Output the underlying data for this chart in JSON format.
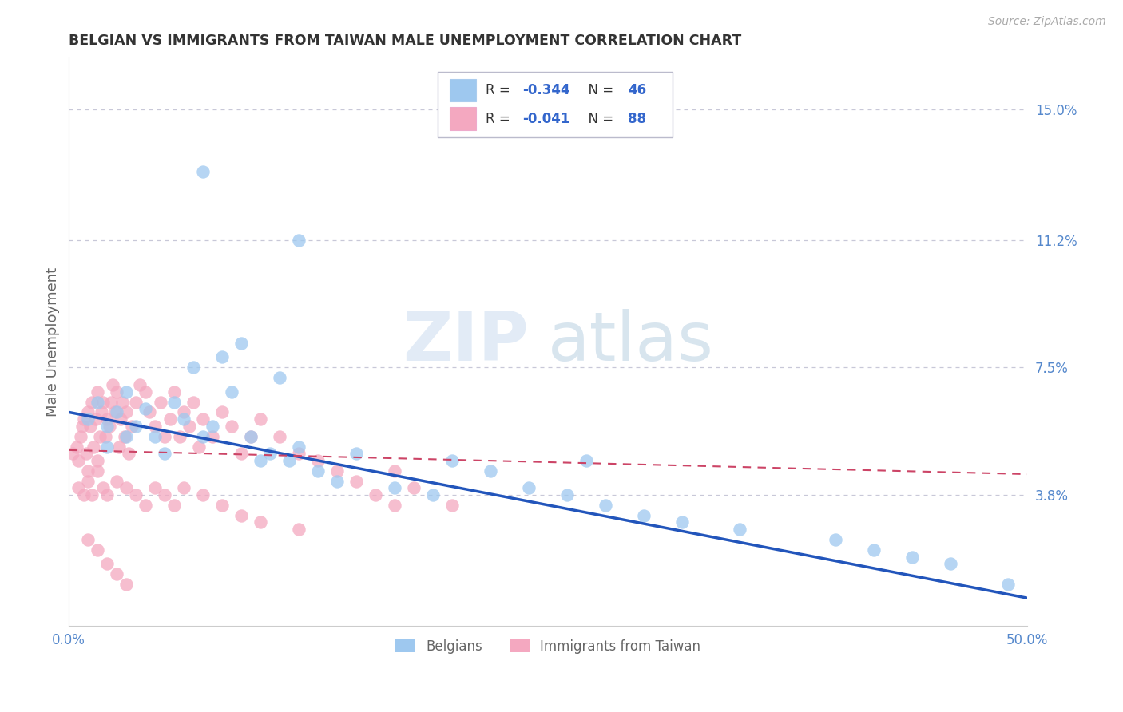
{
  "title": "BELGIAN VS IMMIGRANTS FROM TAIWAN MALE UNEMPLOYMENT CORRELATION CHART",
  "source": "Source: ZipAtlas.com",
  "ylabel": "Male Unemployment",
  "xlim": [
    0.0,
    0.5
  ],
  "ylim": [
    0.0,
    0.165
  ],
  "xtick_positions": [
    0.0,
    0.5
  ],
  "xticklabels": [
    "0.0%",
    "50.0%"
  ],
  "ytick_positions": [
    0.038,
    0.075,
    0.112,
    0.15
  ],
  "ytick_labels": [
    "3.8%",
    "7.5%",
    "11.2%",
    "15.0%"
  ],
  "grid_color": "#c8c8d8",
  "background_color": "#ffffff",
  "title_color": "#333333",
  "axis_label_color": "#666666",
  "tick_color": "#5588cc",
  "legend_r1_label": "R = ",
  "legend_r1_val": "-0.344",
  "legend_n1": "N = 46",
  "legend_r2_label": "R = ",
  "legend_r2_val": "-0.041",
  "legend_n2": "N = 88",
  "legend_label1": "Belgians",
  "legend_label2": "Immigrants from Taiwan",
  "series1_color": "#9ec8ef",
  "series2_color": "#f4a8c0",
  "belgian_line_x": [
    0.0,
    0.5
  ],
  "belgian_line_y": [
    0.062,
    0.008
  ],
  "taiwan_line_x": [
    0.0,
    0.5
  ],
  "taiwan_line_y": [
    0.051,
    0.044
  ],
  "belgians_x": [
    0.01,
    0.015,
    0.02,
    0.02,
    0.025,
    0.03,
    0.03,
    0.035,
    0.04,
    0.045,
    0.05,
    0.055,
    0.06,
    0.065,
    0.07,
    0.075,
    0.08,
    0.085,
    0.09,
    0.095,
    0.1,
    0.105,
    0.11,
    0.115,
    0.12,
    0.13,
    0.14,
    0.15,
    0.17,
    0.19,
    0.2,
    0.22,
    0.24,
    0.26,
    0.27,
    0.28,
    0.3,
    0.32,
    0.35,
    0.4,
    0.42,
    0.44,
    0.46,
    0.49,
    0.07,
    0.12
  ],
  "belgians_y": [
    0.06,
    0.065,
    0.058,
    0.052,
    0.062,
    0.055,
    0.068,
    0.058,
    0.063,
    0.055,
    0.05,
    0.065,
    0.06,
    0.075,
    0.055,
    0.058,
    0.078,
    0.068,
    0.082,
    0.055,
    0.048,
    0.05,
    0.072,
    0.048,
    0.052,
    0.045,
    0.042,
    0.05,
    0.04,
    0.038,
    0.048,
    0.045,
    0.04,
    0.038,
    0.048,
    0.035,
    0.032,
    0.03,
    0.028,
    0.025,
    0.022,
    0.02,
    0.018,
    0.012,
    0.132,
    0.112
  ],
  "taiwan_x": [
    0.002,
    0.004,
    0.005,
    0.006,
    0.007,
    0.008,
    0.009,
    0.01,
    0.01,
    0.011,
    0.012,
    0.013,
    0.014,
    0.015,
    0.015,
    0.016,
    0.017,
    0.018,
    0.019,
    0.02,
    0.021,
    0.022,
    0.023,
    0.024,
    0.025,
    0.026,
    0.027,
    0.028,
    0.029,
    0.03,
    0.031,
    0.033,
    0.035,
    0.037,
    0.04,
    0.042,
    0.045,
    0.048,
    0.05,
    0.053,
    0.055,
    0.058,
    0.06,
    0.063,
    0.065,
    0.068,
    0.07,
    0.075,
    0.08,
    0.085,
    0.09,
    0.095,
    0.1,
    0.11,
    0.12,
    0.13,
    0.14,
    0.15,
    0.16,
    0.17,
    0.005,
    0.008,
    0.01,
    0.012,
    0.015,
    0.018,
    0.02,
    0.025,
    0.03,
    0.035,
    0.04,
    0.045,
    0.05,
    0.055,
    0.06,
    0.07,
    0.08,
    0.09,
    0.1,
    0.12,
    0.01,
    0.015,
    0.02,
    0.025,
    0.03,
    0.17,
    0.18,
    0.2
  ],
  "taiwan_y": [
    0.05,
    0.052,
    0.048,
    0.055,
    0.058,
    0.06,
    0.05,
    0.062,
    0.045,
    0.058,
    0.065,
    0.052,
    0.06,
    0.068,
    0.048,
    0.055,
    0.062,
    0.065,
    0.055,
    0.06,
    0.058,
    0.065,
    0.07,
    0.062,
    0.068,
    0.052,
    0.06,
    0.065,
    0.055,
    0.062,
    0.05,
    0.058,
    0.065,
    0.07,
    0.068,
    0.062,
    0.058,
    0.065,
    0.055,
    0.06,
    0.068,
    0.055,
    0.062,
    0.058,
    0.065,
    0.052,
    0.06,
    0.055,
    0.062,
    0.058,
    0.05,
    0.055,
    0.06,
    0.055,
    0.05,
    0.048,
    0.045,
    0.042,
    0.038,
    0.035,
    0.04,
    0.038,
    0.042,
    0.038,
    0.045,
    0.04,
    0.038,
    0.042,
    0.04,
    0.038,
    0.035,
    0.04,
    0.038,
    0.035,
    0.04,
    0.038,
    0.035,
    0.032,
    0.03,
    0.028,
    0.025,
    0.022,
    0.018,
    0.015,
    0.012,
    0.045,
    0.04,
    0.035
  ]
}
